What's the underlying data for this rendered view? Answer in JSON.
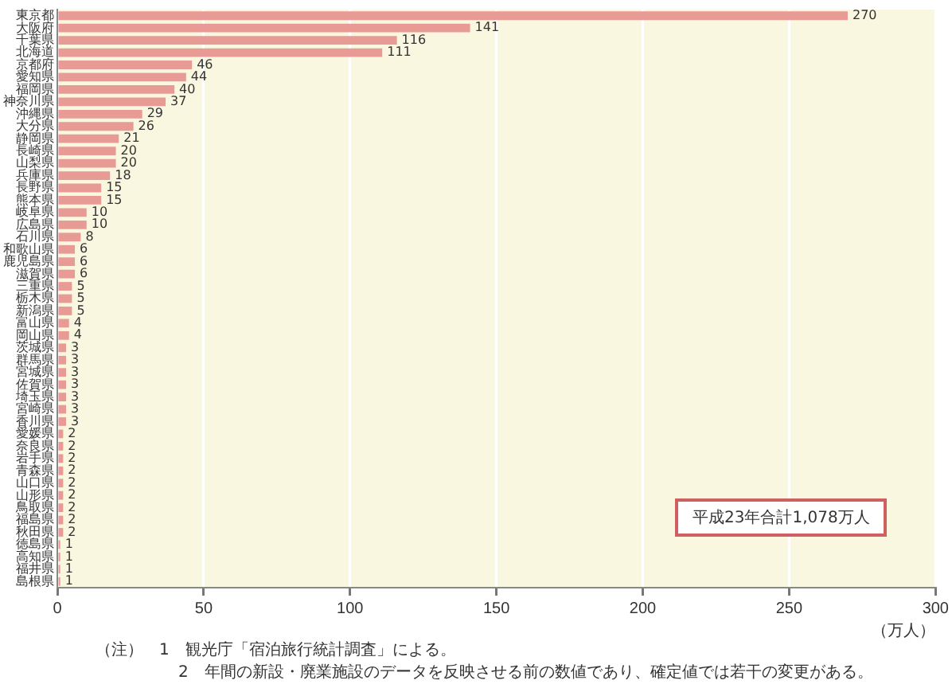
{
  "chart_data": {
    "type": "bar",
    "orientation": "horizontal",
    "xlabel": "（万人）",
    "categories": [
      "東京都",
      "大阪府",
      "千葉県",
      "北海道",
      "京都府",
      "愛知県",
      "福岡県",
      "神奈川県",
      "沖縄県",
      "大分県",
      "静岡県",
      "長崎県",
      "山梨県",
      "兵庫県",
      "長野県",
      "熊本県",
      "岐阜県",
      "広島県",
      "石川県",
      "和歌山県",
      "鹿児島県",
      "滋賀県",
      "三重県",
      "栃木県",
      "新潟県",
      "富山県",
      "岡山県",
      "茨城県",
      "群馬県",
      "宮城県",
      "佐賀県",
      "埼玉県",
      "宮崎県",
      "香川県",
      "愛媛県",
      "奈良県",
      "岩手県",
      "青森県",
      "山口県",
      "山形県",
      "鳥取県",
      "福島県",
      "秋田県",
      "徳島県",
      "高知県",
      "福井県",
      "島根県"
    ],
    "values": [
      270,
      141,
      116,
      111,
      46,
      44,
      40,
      37,
      29,
      26,
      21,
      20,
      20,
      18,
      15,
      15,
      10,
      10,
      8,
      6,
      6,
      6,
      5,
      5,
      5,
      4,
      4,
      3,
      3,
      3,
      3,
      3,
      3,
      3,
      2,
      2,
      2,
      2,
      2,
      2,
      2,
      2,
      2,
      1,
      1,
      1,
      1
    ],
    "color": "#e89a94",
    "data_labels": true,
    "grid": "x",
    "xlim": [
      0,
      300
    ],
    "xticks": [
      0,
      50,
      100,
      150,
      200,
      250,
      300
    ],
    "annotations": [
      "平成23年合計1,078万人",
      "（注）　1　観光庁「宿泊旅行統計調査」による。",
      "2　年間の新設・廃業施設のデータを反映させる前の数値であり、確定値では若干の変更がある。"
    ]
  }
}
